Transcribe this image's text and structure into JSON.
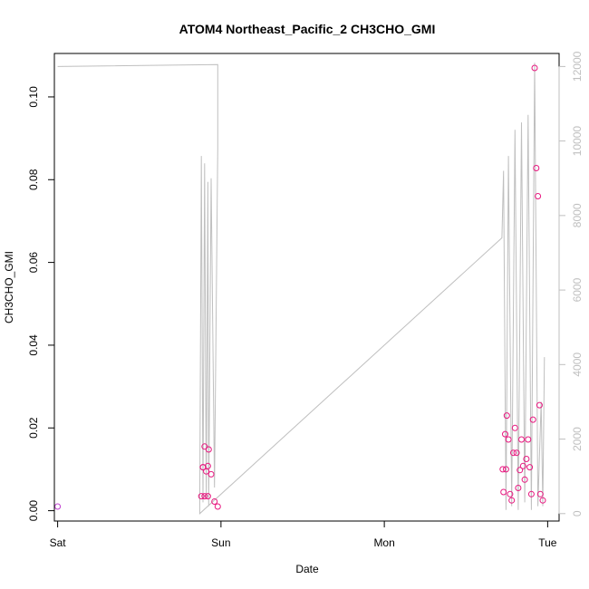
{
  "chart_data": {
    "type": "scatter",
    "title": "ATOM4 Northeast_Pacific_2 CH3CHO_GMI",
    "xlabel": "Date",
    "ylabel": "CH3CHO_GMI",
    "x_ticks": [
      "Sat",
      "Sun",
      "Mon",
      "Tue"
    ],
    "xlim_days": [
      -0.02,
      3.07
    ],
    "ylim": [
      -0.0025,
      0.1105
    ],
    "y_ticks": [
      0.0,
      0.02,
      0.04,
      0.06,
      0.08,
      0.1
    ],
    "y_tick_labels": [
      "0.00",
      "0.02",
      "0.04",
      "0.06",
      "0.08",
      "0.10"
    ],
    "y2lim": [
      -200,
      12350
    ],
    "y2_ticks": [
      0,
      2000,
      4000,
      6000,
      8000,
      10000,
      12000
    ],
    "y2_tick_labels": [
      "0",
      "2000",
      "4000",
      "6000",
      "8000",
      "10000",
      "12000"
    ],
    "points_color": "#e8177f",
    "first_point_color": "#c040d0",
    "line_color": "#bfbfbf",
    "grid": false,
    "series": [
      {
        "kind": "points",
        "x_day": [
          0.0,
          0.88,
          0.89,
          0.9,
          0.91,
          0.92,
          0.925,
          0.94,
          0.96,
          0.98,
          0.9,
          0.92,
          0.89,
          2.73,
          2.74,
          2.75,
          2.76,
          2.77,
          2.78,
          2.79,
          2.8,
          2.81,
          2.82,
          2.83,
          2.84,
          2.85,
          2.86,
          2.87,
          2.88,
          2.89,
          2.9,
          2.91,
          2.92,
          2.93,
          2.94,
          2.95,
          2.955,
          2.97,
          2.745,
          2.725
        ],
        "y": [
          0.001,
          0.0035,
          0.0105,
          0.0155,
          0.0095,
          0.0108,
          0.0148,
          0.0088,
          0.0022,
          0.001,
          0.0035,
          0.0035,
          0.0105,
          0.0045,
          0.0185,
          0.023,
          0.0172,
          0.004,
          0.0025,
          0.014,
          0.02,
          0.014,
          0.0055,
          0.0098,
          0.0172,
          0.0108,
          0.0075,
          0.0125,
          0.0172,
          0.0105,
          0.004,
          0.022,
          0.107,
          0.0828,
          0.076,
          0.0255,
          0.004,
          0.0025,
          0.01,
          0.01
        ]
      },
      {
        "kind": "line",
        "x_day": [
          0.0,
          0.98,
          0.98,
          0.96,
          0.94,
          0.925,
          0.92,
          0.91,
          0.9,
          0.89,
          0.88,
          0.87,
          2.72,
          2.73,
          2.745,
          2.76,
          2.78,
          2.8,
          2.82,
          2.84,
          2.86,
          2.88,
          2.9,
          2.92,
          2.94,
          2.96,
          2.97,
          2.98
        ],
        "y2": [
          12000,
          12050,
          9800,
          700,
          9000,
          200,
          8900,
          400,
          9400,
          300,
          9600,
          0,
          7400,
          9200,
          100,
          9600,
          200,
          10300,
          100,
          10500,
          300,
          10700,
          100,
          12100,
          200,
          3000,
          200,
          4200
        ]
      }
    ]
  }
}
